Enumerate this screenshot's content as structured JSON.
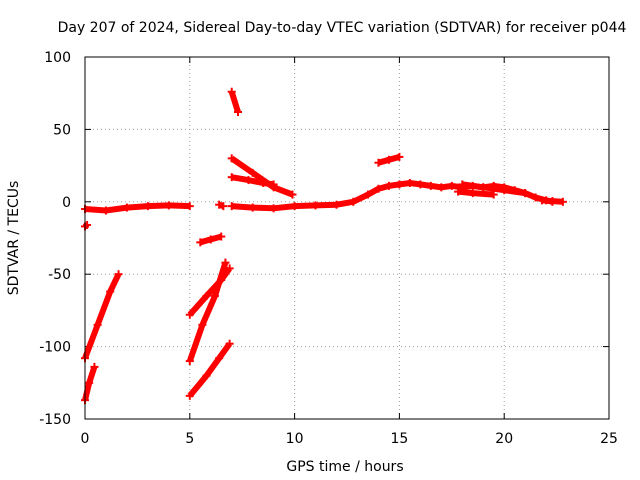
{
  "chart_data": {
    "type": "scatter",
    "title": "Day 207 of 2024, Sidereal Day-to-day VTEC variation (SDTVAR) for receiver p044",
    "xlabel": "GPS time / hours",
    "ylabel": "SDTVAR / TECUs",
    "xlim": [
      0,
      25
    ],
    "ylim": [
      -150,
      100
    ],
    "xticks": [
      0,
      5,
      10,
      15,
      20,
      25
    ],
    "yticks": [
      -150,
      -100,
      -50,
      0,
      50,
      100
    ],
    "grid": true,
    "marker_color": "#ff0000",
    "series": [
      {
        "name": "tracks",
        "segments": [
          {
            "points": [
              [
                0.0,
                -17
              ],
              [
                0.1,
                -16
              ]
            ]
          },
          {
            "points": [
              [
                0.0,
                -5
              ],
              [
                1.0,
                -6
              ],
              [
                2.0,
                -4
              ],
              [
                3.0,
                -3
              ],
              [
                4.0,
                -2.5
              ],
              [
                5.0,
                -3
              ]
            ]
          },
          {
            "points": [
              [
                0.0,
                -108
              ],
              [
                0.6,
                -85
              ],
              [
                1.2,
                -62
              ],
              [
                1.6,
                -50
              ]
            ]
          },
          {
            "points": [
              [
                0.0,
                -137
              ],
              [
                0.2,
                -125
              ],
              [
                0.45,
                -114
              ]
            ]
          },
          {
            "points": [
              [
                5.0,
                -78
              ],
              [
                5.8,
                -65
              ],
              [
                6.5,
                -54
              ],
              [
                6.9,
                -46
              ]
            ]
          },
          {
            "points": [
              [
                5.0,
                -110
              ],
              [
                5.6,
                -85
              ],
              [
                6.2,
                -65
              ],
              [
                6.7,
                -42
              ]
            ]
          },
          {
            "points": [
              [
                5.0,
                -134
              ],
              [
                5.8,
                -120
              ],
              [
                6.4,
                -108
              ],
              [
                6.9,
                -98
              ]
            ]
          },
          {
            "points": [
              [
                5.5,
                -28
              ],
              [
                6.0,
                -26
              ],
              [
                6.5,
                -24
              ]
            ]
          },
          {
            "points": [
              [
                6.4,
                -2
              ],
              [
                6.6,
                -3
              ]
            ]
          },
          {
            "points": [
              [
                7.0,
                76
              ],
              [
                7.3,
                62
              ]
            ]
          },
          {
            "points": [
              [
                7.0,
                30
              ],
              [
                8.0,
                20
              ],
              [
                9.0,
                10
              ],
              [
                9.9,
                5
              ]
            ]
          },
          {
            "points": [
              [
                7.0,
                17
              ],
              [
                7.8,
                15
              ],
              [
                8.5,
                13
              ],
              [
                9.0,
                12
              ]
            ]
          },
          {
            "points": [
              [
                7.0,
                -3
              ],
              [
                8.0,
                -4
              ],
              [
                9.0,
                -4.5
              ],
              [
                10.0,
                -3
              ],
              [
                11.0,
                -2.5
              ],
              [
                12.0,
                -2
              ],
              [
                12.8,
                0
              ],
              [
                13.5,
                5
              ],
              [
                14.0,
                9
              ],
              [
                14.5,
                11
              ],
              [
                15.0,
                12
              ],
              [
                15.5,
                13
              ],
              [
                16.0,
                12
              ],
              [
                16.5,
                11
              ],
              [
                17.0,
                10
              ],
              [
                17.5,
                11
              ],
              [
                18.0,
                10
              ],
              [
                18.5,
                11
              ],
              [
                19.0,
                10
              ],
              [
                19.5,
                11
              ],
              [
                20.0,
                10
              ],
              [
                20.5,
                8
              ],
              [
                21.0,
                6
              ],
              [
                21.5,
                3
              ],
              [
                22.0,
                1
              ],
              [
                22.3,
                0
              ]
            ]
          },
          {
            "points": [
              [
                18.0,
                12
              ],
              [
                19.0,
                10
              ],
              [
                20.0,
                8
              ],
              [
                21.0,
                6
              ]
            ]
          },
          {
            "points": [
              [
                17.8,
                7
              ],
              [
                18.5,
                6
              ],
              [
                19.5,
                5
              ]
            ]
          },
          {
            "points": [
              [
                14.0,
                27
              ],
              [
                14.5,
                29
              ],
              [
                15.0,
                31
              ]
            ]
          },
          {
            "points": [
              [
                21.8,
                1
              ],
              [
                22.3,
                0.5
              ],
              [
                22.8,
                0
              ]
            ]
          }
        ]
      }
    ]
  }
}
